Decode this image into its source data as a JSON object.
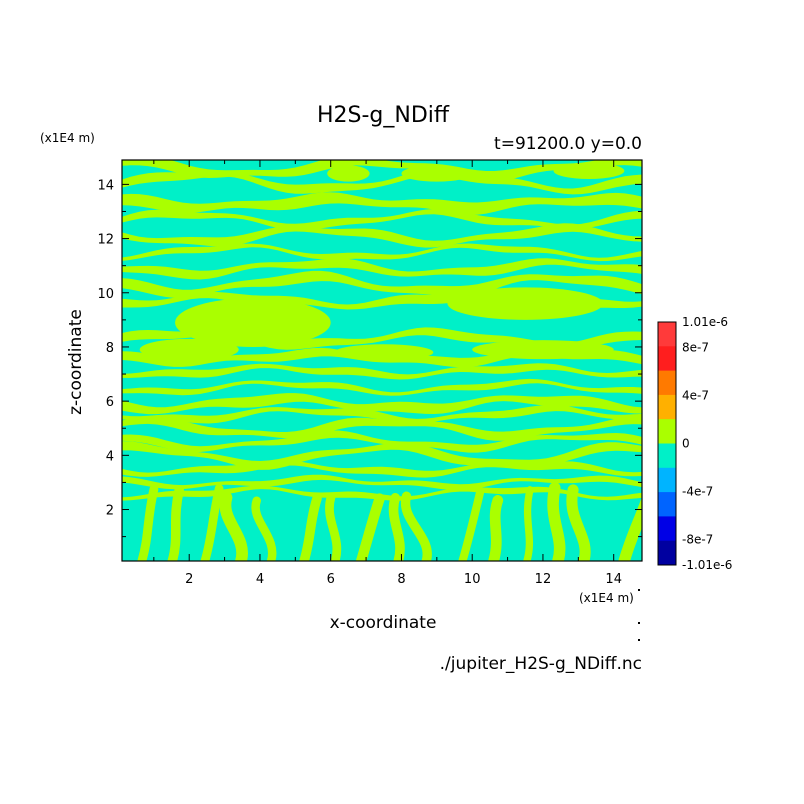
{
  "chart_data": {
    "type": "heatmap",
    "title": "H2S-g_NDiff",
    "subtitle": "t=91200.0 y=0.0",
    "xlabel": "x-coordinate",
    "ylabel": "z-coordinate",
    "x_unit": "(x1E4 m)",
    "y_unit": "(x1E4 m)",
    "x_ticks": [
      "2",
      "4",
      "6",
      "8",
      "10",
      "12",
      "14"
    ],
    "y_ticks": [
      "2",
      "4",
      "6",
      "8",
      "10",
      "12",
      "14"
    ],
    "xlim": [
      0.1,
      14.8
    ],
    "ylim": [
      0.1,
      14.9
    ],
    "colorbar": {
      "labels": [
        "1.01e-6",
        "8e-7",
        "4e-7",
        "0",
        "-4e-7",
        "-8e-7",
        "-1.01e-6"
      ],
      "levels": [
        1.01e-06,
        8e-07,
        6e-07,
        4e-07,
        2e-07,
        0,
        -2e-07,
        -4e-07,
        -6e-07,
        -8e-07,
        -1.01e-06
      ],
      "colors": [
        "#ff3a3a",
        "#ff1e1e",
        "#ff7a00",
        "#ffb000",
        "#aaff00",
        "#00f0c8",
        "#00b4ff",
        "#0064ff",
        "#0000e6",
        "#0000a0"
      ]
    },
    "colors": {
      "positive_band": "#aaff00",
      "negative_band": "#00f0c8"
    },
    "dominant_levels": [
      "0 to 2e-7",
      "-2e-7 to 0"
    ],
    "footer": "./jupiter_H2S-g_NDiff.nc"
  }
}
